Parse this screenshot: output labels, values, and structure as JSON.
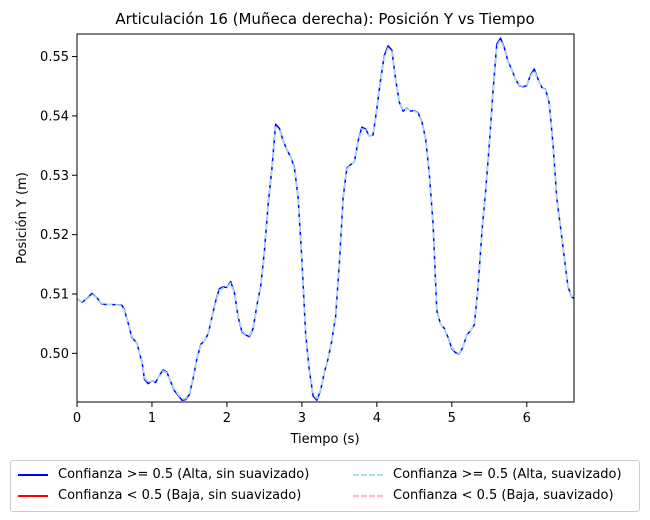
{
  "chart_data": {
    "type": "line",
    "title": "Articulación 16 (Muñeca derecha): Posición Y vs Tiempo",
    "xlabel": "Tiempo (s)",
    "ylabel": "Posición Y (m)",
    "xlim": [
      0,
      6.63
    ],
    "ylim": [
      0.4918,
      0.5538
    ],
    "xticks": [
      0,
      1,
      2,
      3,
      4,
      5,
      6
    ],
    "yticks": [
      0.5,
      0.51,
      0.52,
      0.53,
      0.54,
      0.55
    ],
    "ytick_labels": [
      "0.50",
      "0.51",
      "0.52",
      "0.53",
      "0.54",
      "0.55"
    ],
    "grid": false,
    "legend_placement": "below",
    "series": [
      {
        "name": "Confianza >= 0.5 (Alta, sin suavizado)",
        "color": "#0000ff",
        "style": "solid",
        "x": [
          0,
          0.07,
          0.13,
          0.2,
          0.27,
          0.33,
          0.4,
          0.5,
          0.6,
          0.63,
          0.7,
          0.73,
          0.8,
          0.87,
          0.9,
          0.95,
          1.0,
          1.05,
          1.1,
          1.15,
          1.2,
          1.25,
          1.3,
          1.35,
          1.4,
          1.45,
          1.5,
          1.55,
          1.6,
          1.65,
          1.7,
          1.75,
          1.8,
          1.85,
          1.9,
          1.95,
          2.0,
          2.05,
          2.1,
          2.15,
          2.2,
          2.25,
          2.3,
          2.35,
          2.4,
          2.45,
          2.5,
          2.55,
          2.6,
          2.65,
          2.7,
          2.75,
          2.8,
          2.85,
          2.9,
          2.95,
          3.0,
          3.05,
          3.1,
          3.15,
          3.2,
          3.25,
          3.3,
          3.35,
          3.4,
          3.45,
          3.5,
          3.55,
          3.6,
          3.65,
          3.7,
          3.75,
          3.8,
          3.85,
          3.9,
          3.95,
          4.0,
          4.05,
          4.1,
          4.15,
          4.2,
          4.25,
          4.3,
          4.35,
          4.4,
          4.45,
          4.5,
          4.55,
          4.6,
          4.65,
          4.7,
          4.75,
          4.8,
          4.85,
          4.9,
          4.95,
          5.0,
          5.05,
          5.1,
          5.15,
          5.2,
          5.25,
          5.3,
          5.35,
          5.4,
          5.45,
          5.5,
          5.55,
          5.6,
          5.65,
          5.7,
          5.75,
          5.8,
          5.85,
          5.9,
          5.95,
          6.0,
          6.05,
          6.1,
          6.15,
          6.2,
          6.25,
          6.3,
          6.35,
          6.4,
          6.45,
          6.5,
          6.55,
          6.6,
          6.63
        ],
        "y": [
          0.5092,
          0.5086,
          0.5092,
          0.5101,
          0.5093,
          0.5083,
          0.5082,
          0.5082,
          0.5081,
          0.5074,
          0.5043,
          0.5027,
          0.5017,
          0.4983,
          0.4956,
          0.4949,
          0.4954,
          0.4951,
          0.4963,
          0.4972,
          0.4968,
          0.4952,
          0.4937,
          0.4929,
          0.4921,
          0.4922,
          0.4931,
          0.4958,
          0.4991,
          0.5015,
          0.5021,
          0.5033,
          0.5061,
          0.5088,
          0.5109,
          0.5112,
          0.5111,
          0.5121,
          0.5102,
          0.5061,
          0.5036,
          0.5031,
          0.5028,
          0.5042,
          0.5081,
          0.5112,
          0.5172,
          0.5251,
          0.5311,
          0.5386,
          0.5379,
          0.5358,
          0.5343,
          0.5331,
          0.5313,
          0.5262,
          0.5158,
          0.5033,
          0.4971,
          0.4928,
          0.4921,
          0.4938,
          0.4968,
          0.4991,
          0.5022,
          0.5062,
          0.5152,
          0.5262,
          0.5312,
          0.5318,
          0.5322,
          0.5358,
          0.5381,
          0.5378,
          0.5366,
          0.5368,
          0.5412,
          0.5461,
          0.5502,
          0.5518,
          0.5511,
          0.5462,
          0.5423,
          0.5408,
          0.5413,
          0.5408,
          0.5409,
          0.5405,
          0.5391,
          0.5362,
          0.5302,
          0.5218,
          0.5072,
          0.5049,
          0.5042,
          0.5027,
          0.5008,
          0.5001,
          0.4999,
          0.5011,
          0.5031,
          0.5038,
          0.5048,
          0.5112,
          0.5202,
          0.5272,
          0.5351,
          0.5442,
          0.5521,
          0.5531,
          0.5515,
          0.5492,
          0.5478,
          0.5462,
          0.5451,
          0.5449,
          0.5451,
          0.5469,
          0.5479,
          0.5462,
          0.5448,
          0.5445,
          0.5421,
          0.5352,
          0.5262,
          0.5212,
          0.5162,
          0.5112,
          0.5095,
          0.5092
        ]
      },
      {
        "name": "Confianza < 0.5 (Baja, sin suavizado)",
        "color": "#ff0000",
        "style": "solid",
        "x": [],
        "y": []
      },
      {
        "name": "Confianza >= 0.5 (Alta, suavizado)",
        "color": "#add8e6",
        "style": "dashed",
        "x": [
          0,
          0.07,
          0.13,
          0.2,
          0.27,
          0.33,
          0.4,
          0.5,
          0.6,
          0.63,
          0.7,
          0.73,
          0.8,
          0.87,
          0.9,
          0.95,
          1.0,
          1.05,
          1.1,
          1.15,
          1.2,
          1.25,
          1.3,
          1.35,
          1.4,
          1.45,
          1.5,
          1.55,
          1.6,
          1.65,
          1.7,
          1.75,
          1.8,
          1.85,
          1.9,
          1.95,
          2.0,
          2.05,
          2.1,
          2.15,
          2.2,
          2.25,
          2.3,
          2.35,
          2.4,
          2.45,
          2.5,
          2.55,
          2.6,
          2.65,
          2.7,
          2.75,
          2.8,
          2.85,
          2.9,
          2.95,
          3.0,
          3.05,
          3.1,
          3.15,
          3.2,
          3.25,
          3.3,
          3.35,
          3.4,
          3.45,
          3.5,
          3.55,
          3.6,
          3.65,
          3.7,
          3.75,
          3.8,
          3.85,
          3.9,
          3.95,
          4.0,
          4.05,
          4.1,
          4.15,
          4.2,
          4.25,
          4.3,
          4.35,
          4.4,
          4.45,
          4.5,
          4.55,
          4.6,
          4.65,
          4.7,
          4.75,
          4.8,
          4.85,
          4.9,
          4.95,
          5.0,
          5.05,
          5.1,
          5.15,
          5.2,
          5.25,
          5.3,
          5.35,
          5.4,
          5.45,
          5.5,
          5.55,
          5.6,
          5.65,
          5.7,
          5.75,
          5.8,
          5.85,
          5.9,
          5.95,
          6.0,
          6.05,
          6.1,
          6.15,
          6.2,
          6.25,
          6.3,
          6.35,
          6.4,
          6.45,
          6.5,
          6.55,
          6.6,
          6.63
        ],
        "y": [
          0.5091,
          0.5087,
          0.5091,
          0.5099,
          0.5093,
          0.5084,
          0.5082,
          0.5082,
          0.508,
          0.5072,
          0.5044,
          0.5029,
          0.5016,
          0.4985,
          0.4959,
          0.4951,
          0.4954,
          0.4953,
          0.4962,
          0.497,
          0.4967,
          0.4953,
          0.4939,
          0.4931,
          0.4923,
          0.4924,
          0.4933,
          0.4959,
          0.499,
          0.5013,
          0.5021,
          0.5034,
          0.506,
          0.5086,
          0.5106,
          0.511,
          0.5111,
          0.5118,
          0.5101,
          0.5063,
          0.5038,
          0.5032,
          0.503,
          0.5044,
          0.508,
          0.5111,
          0.517,
          0.5248,
          0.5308,
          0.5381,
          0.5377,
          0.5357,
          0.5342,
          0.533,
          0.5311,
          0.526,
          0.5157,
          0.5034,
          0.4973,
          0.4931,
          0.4924,
          0.4939,
          0.4968,
          0.4992,
          0.5022,
          0.5061,
          0.515,
          0.5259,
          0.531,
          0.5317,
          0.5322,
          0.5356,
          0.5378,
          0.5376,
          0.5366,
          0.5369,
          0.541,
          0.5458,
          0.5499,
          0.5514,
          0.5508,
          0.5461,
          0.5424,
          0.5409,
          0.5412,
          0.5408,
          0.5408,
          0.5404,
          0.539,
          0.5361,
          0.5301,
          0.5218,
          0.5074,
          0.5049,
          0.5042,
          0.5028,
          0.501,
          0.5002,
          0.5,
          0.5011,
          0.503,
          0.5038,
          0.5049,
          0.5111,
          0.52,
          0.527,
          0.5349,
          0.5438,
          0.5517,
          0.5528,
          0.5513,
          0.5491,
          0.5477,
          0.5462,
          0.5452,
          0.545,
          0.5452,
          0.5467,
          0.5476,
          0.5461,
          0.5448,
          0.5444,
          0.5419,
          0.5351,
          0.5262,
          0.5212,
          0.5161,
          0.5113,
          0.5096,
          0.5093
        ]
      },
      {
        "name": "Confianza < 0.5 (Baja, suavizado)",
        "color": "#ffb6c1",
        "style": "dashed",
        "x": [],
        "y": []
      }
    ]
  }
}
